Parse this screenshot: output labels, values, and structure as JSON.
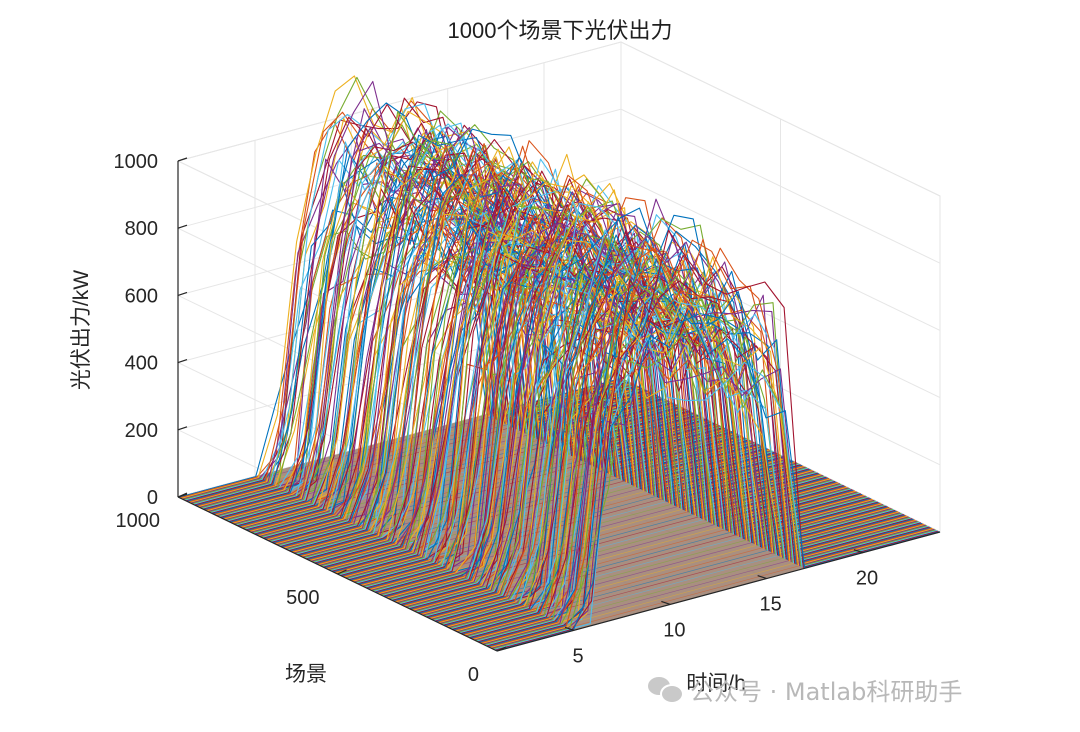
{
  "chart_data": {
    "type": "surface-3d-lines",
    "title": "1000个场景下光伏出力",
    "xlabel": "时间/h",
    "ylabel": "场景",
    "zlabel": "光伏出力/kW",
    "xlim": [
      1,
      24
    ],
    "ylim": [
      0,
      1000
    ],
    "zlim": [
      0,
      1000
    ],
    "x_ticks": [
      5,
      10,
      15,
      20
    ],
    "y_ticks": [
      0,
      500,
      1000
    ],
    "z_ticks": [
      0,
      200,
      400,
      600,
      800,
      1000
    ],
    "grid": true,
    "series_count": 1000,
    "typical_profile": {
      "hour": [
        1,
        2,
        3,
        4,
        5,
        6,
        7,
        8,
        9,
        10,
        11,
        12,
        13,
        14,
        15,
        16,
        17,
        18,
        19,
        20,
        21,
        22,
        23,
        24
      ],
      "power_kw": [
        0,
        0,
        0,
        0,
        0,
        120,
        620,
        880,
        960,
        990,
        970,
        940,
        900,
        850,
        780,
        700,
        0,
        0,
        0,
        0,
        0,
        0,
        0,
        0
      ]
    },
    "line_colors": [
      "#0072BD",
      "#D95319",
      "#EDB120",
      "#7E2F8E",
      "#77AC30",
      "#4DBEEE",
      "#A2142F"
    ]
  },
  "watermark": {
    "text": "公众号 · Matlab科研助手",
    "icon": "wechat-icon"
  }
}
